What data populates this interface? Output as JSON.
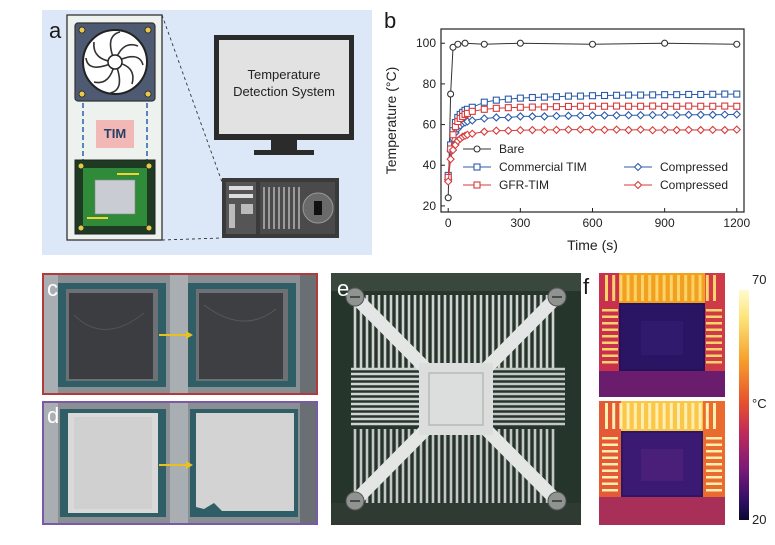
{
  "panels": {
    "a": {
      "label": "a",
      "tim_label": "TIM",
      "system_label_line1": "Temperature",
      "system_label_line2": "Detection System"
    },
    "b": {
      "label": "b"
    },
    "c": {
      "label": "c"
    },
    "d": {
      "label": "d"
    },
    "e": {
      "label": "e"
    },
    "f": {
      "label": "f",
      "scale_max": "70",
      "scale_min": "20",
      "scale_unit": "°C"
    }
  },
  "colors": {
    "panel_a_bg": "#dce8f7",
    "border_c": "#b33a3a",
    "border_d": "#7a5aa6",
    "bare": "#333333",
    "commercial": "#2a5caa",
    "gfr": "#d93a3a",
    "arrow": "#e8c020"
  },
  "chart_data": {
    "type": "line",
    "xlabel": "Time (s)",
    "ylabel": "Temperature (°C)",
    "xlim": [
      -30,
      1230
    ],
    "ylim": [
      17,
      107
    ],
    "xticks": [
      0,
      300,
      600,
      900,
      1200
    ],
    "yticks": [
      20,
      40,
      60,
      80,
      100
    ],
    "series": [
      {
        "name": "Bare",
        "color": "#333333",
        "marker": "circle",
        "x": [
          0,
          10,
          20,
          40,
          70,
          150,
          300,
          600,
          900,
          1200
        ],
        "y": [
          24,
          75,
          98,
          99.5,
          100,
          99.5,
          100,
          99.5,
          100,
          99.5
        ]
      },
      {
        "name": "Commercial TIM",
        "color": "#2a5caa",
        "marker": "square",
        "x": [
          0,
          10,
          20,
          30,
          40,
          50,
          60,
          70,
          80,
          100,
          150,
          200,
          250,
          300,
          350,
          400,
          450,
          500,
          550,
          600,
          650,
          700,
          750,
          800,
          850,
          900,
          950,
          1000,
          1050,
          1100,
          1150,
          1200
        ],
        "y": [
          35,
          50,
          57,
          61,
          63.5,
          65,
          66,
          67,
          67.5,
          68.5,
          71,
          72,
          72.5,
          73,
          73.3,
          73.5,
          73.7,
          74,
          74,
          74.2,
          74.3,
          74.4,
          74.5,
          74.5,
          74.6,
          74.7,
          74.7,
          74.8,
          74.8,
          74.9,
          75,
          75
        ]
      },
      {
        "name": "Compressed",
        "color": "#2a5caa",
        "marker": "diamond",
        "x": [
          0,
          10,
          20,
          30,
          40,
          50,
          60,
          70,
          80,
          100,
          150,
          200,
          250,
          300,
          350,
          400,
          450,
          500,
          550,
          600,
          650,
          700,
          750,
          800,
          850,
          900,
          950,
          1000,
          1050,
          1100,
          1150,
          1200
        ],
        "y": [
          33,
          47,
          53,
          56,
          58,
          59.5,
          60.5,
          61,
          61.5,
          62,
          63,
          63.5,
          63.5,
          64,
          64,
          64,
          64.2,
          64.3,
          64.4,
          64.5,
          64.5,
          64.5,
          64.6,
          64.6,
          64.7,
          64.7,
          64.7,
          64.8,
          64.8,
          64.8,
          64.9,
          65
        ]
      },
      {
        "name": "GFR-TIM",
        "color": "#d93a3a",
        "marker": "square",
        "x": [
          0,
          10,
          20,
          30,
          40,
          50,
          60,
          70,
          80,
          100,
          150,
          200,
          250,
          300,
          350,
          400,
          450,
          500,
          550,
          600,
          650,
          700,
          750,
          800,
          850,
          900,
          950,
          1000,
          1050,
          1100,
          1150,
          1200
        ],
        "y": [
          34,
          48,
          55,
          59,
          61.5,
          63,
          64,
          65,
          65.5,
          66.5,
          67.5,
          68,
          68.3,
          68.5,
          68.6,
          68.7,
          68.8,
          68.9,
          69,
          69,
          69,
          69.1,
          69,
          69,
          69.1,
          69,
          69,
          69.1,
          69,
          69,
          69.1,
          69
        ]
      },
      {
        "name": "Compressed",
        "color": "#d93a3a",
        "marker": "diamond",
        "x": [
          0,
          10,
          20,
          30,
          40,
          50,
          60,
          70,
          80,
          100,
          150,
          200,
          250,
          300,
          350,
          400,
          450,
          500,
          550,
          600,
          650,
          700,
          750,
          800,
          850,
          900,
          950,
          1000,
          1050,
          1100,
          1150,
          1200
        ],
        "y": [
          32,
          43,
          47.5,
          50,
          52,
          53,
          54,
          54.5,
          55,
          55.5,
          56.5,
          57,
          57,
          57.2,
          57.3,
          57.4,
          57.4,
          57.5,
          57.5,
          57.5,
          57.4,
          57.5,
          57.3,
          57.5,
          57.2,
          57.4,
          57.3,
          57.4,
          57.3,
          57.4,
          57.3,
          57.5
        ]
      }
    ],
    "legend": {
      "entries": [
        "Bare",
        "Commercial TIM",
        "Compressed",
        "GFR-TIM",
        "Compressed"
      ],
      "placement": "bottom-right"
    }
  }
}
